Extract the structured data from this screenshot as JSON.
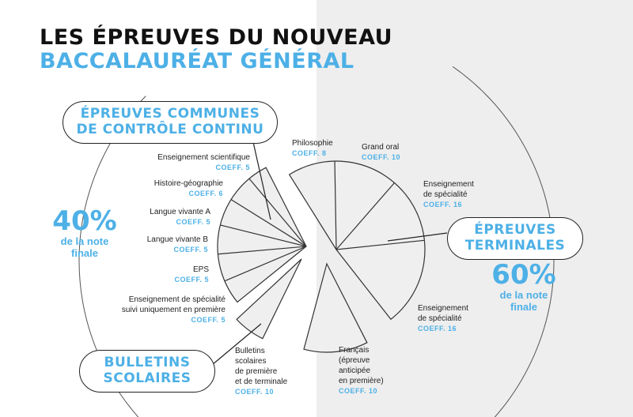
{
  "title": {
    "line1": "LES ÉPREUVES DU NOUVEAU",
    "line2": "BACCALAURÉAT GÉNÉRAL"
  },
  "groups": {
    "controle_continu": {
      "line1": "ÉPREUVES COMMUNES",
      "line2": "DE CONTRÔLE CONTINU"
    },
    "terminales": {
      "line1": "ÉPREUVES",
      "line2": "TERMINALES"
    },
    "bulletins": {
      "line1": "BULLETINS",
      "line2": "SCOLAIRES"
    }
  },
  "share_left": {
    "value": "40%",
    "line1": "de la note",
    "line2": "finale"
  },
  "share_right": {
    "value": "60%",
    "line1": "de la note",
    "line2": "finale"
  },
  "left_items": [
    {
      "lines": [
        "Enseignement scientifique"
      ],
      "coef": "COEFF. 5"
    },
    {
      "lines": [
        "Histoire-géographie"
      ],
      "coef": "COEFF. 6"
    },
    {
      "lines": [
        "Langue vivante A"
      ],
      "coef": "COEFF. 5"
    },
    {
      "lines": [
        "Langue vivante B"
      ],
      "coef": "COEFF. 5"
    },
    {
      "lines": [
        "EPS"
      ],
      "coef": "COEFF. 5"
    },
    {
      "lines": [
        "Enseignement de spécialité",
        "suivi uniquement en première"
      ],
      "coef": "COEFF. 5"
    },
    {
      "lines": [
        "Bulletins",
        "scolaires",
        "de première",
        "et de terminale"
      ],
      "coef": "COEFF. 10"
    }
  ],
  "right_items": [
    {
      "lines": [
        "Philosophie"
      ],
      "coef": "COEFF. 8"
    },
    {
      "lines": [
        "Grand oral"
      ],
      "coef": "COEFF. 10"
    },
    {
      "lines": [
        "Enseignement",
        "de spécialité"
      ],
      "coef": "COEFF. 16"
    },
    {
      "lines": [
        "Enseignement",
        "de spécialité"
      ],
      "coef": "COEFF. 16"
    },
    {
      "lines": [
        "Français",
        "(épreuve",
        "anticipée",
        "en première)"
      ],
      "coef": "COEFF. 10"
    }
  ],
  "colors": {
    "accent": "#4db0e6",
    "slice_fill": "#efefef",
    "stroke": "#333333",
    "right_bg": "#eeeeee"
  }
}
